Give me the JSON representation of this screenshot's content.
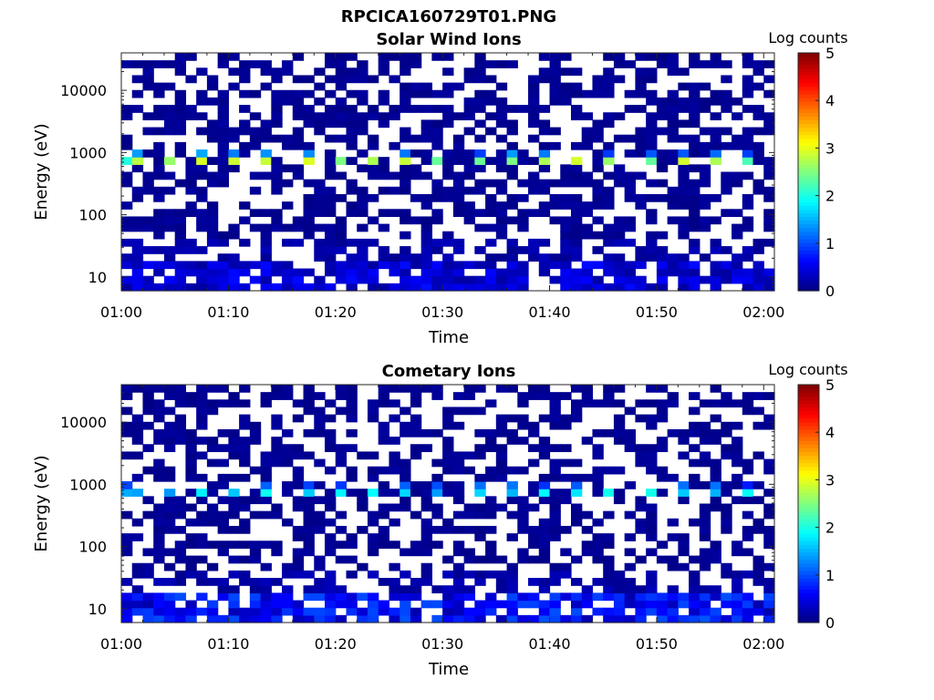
{
  "figure_title": "RPCICA160729T01.PNG",
  "colors": {
    "colormap": "jet",
    "background": "#ffffff",
    "missing_bin": "#ffffff"
  },
  "chart_data": [
    {
      "type": "heatmap",
      "title": "Solar Wind Ions",
      "xlabel": "Time",
      "ylabel": "Energy (eV)",
      "x_range": [
        "01:00",
        "02:01"
      ],
      "x_ticks": [
        "01:00",
        "01:10",
        "01:20",
        "01:30",
        "01:40",
        "01:50",
        "02:00"
      ],
      "y_scale": "log",
      "y_range": [
        6,
        40000
      ],
      "y_ticks": [
        10,
        100,
        1000,
        10000
      ],
      "y_tick_labels": [
        "10",
        "100",
        "1000",
        "10000"
      ],
      "colorbar": {
        "label": "Log counts",
        "range": [
          0,
          5
        ],
        "ticks": [
          "0",
          "1",
          "2",
          "3",
          "4",
          "5"
        ]
      },
      "time_bins": 61,
      "energy_bins": 32,
      "features": {
        "peak_energy_eV": 650,
        "peak_log_counts": 2.6,
        "secondary_energy_eV": 880,
        "secondary_log_counts": 1.5,
        "low_energy_band_eV": [
          6,
          20
        ],
        "low_energy_log_counts": 0.6,
        "background_log_counts": 0.15,
        "peak_period_min": 3.2
      }
    },
    {
      "type": "heatmap",
      "title": "Cometary Ions",
      "xlabel": "Time",
      "ylabel": "Energy (eV)",
      "x_range": [
        "01:00",
        "02:01"
      ],
      "x_ticks": [
        "01:00",
        "01:10",
        "01:20",
        "01:30",
        "01:40",
        "01:50",
        "02:00"
      ],
      "y_scale": "log",
      "y_range": [
        6,
        40000
      ],
      "y_ticks": [
        10,
        100,
        1000,
        10000
      ],
      "y_tick_labels": [
        "10",
        "100",
        "1000",
        "10000"
      ],
      "colorbar": {
        "label": "Log counts",
        "range": [
          0,
          5
        ],
        "ticks": [
          "0",
          "1",
          "2",
          "3",
          "4",
          "5"
        ]
      },
      "time_bins": 61,
      "energy_bins": 32,
      "features": {
        "peak_energy_eV": 650,
        "peak_log_counts": 1.8,
        "secondary_energy_eV": 880,
        "secondary_log_counts": 1.2,
        "low_energy_band_eV": [
          6,
          20
        ],
        "low_energy_log_counts": 0.9,
        "background_log_counts": 0.15,
        "peak_period_min": 3.2
      }
    }
  ]
}
